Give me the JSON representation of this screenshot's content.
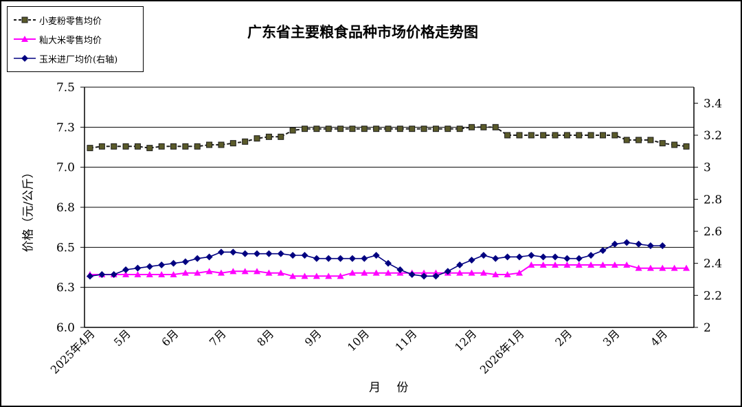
{
  "chart_data": {
    "type": "line",
    "title": "广东省主要粮食品种市场价格走势图",
    "xlabel": "月   份",
    "ylabel": "价格（元/公斤）",
    "grid": true,
    "legend_position": "top-left",
    "y_left": {
      "ylim": [
        6.0,
        7.5
      ],
      "ticks": [
        6.0,
        6.25,
        6.5,
        6.75,
        7.0,
        7.25,
        7.5
      ],
      "tick_labels": [
        "6.0",
        "6.3",
        "6.5",
        "6.8",
        "7.0",
        "7.3",
        "7.5"
      ]
    },
    "y_right": {
      "ylim": [
        2.0,
        3.5
      ],
      "ticks": [
        2.0,
        2.2,
        2.4,
        2.6,
        2.8,
        3.0,
        3.2,
        3.4
      ],
      "tick_labels": [
        "2",
        "2.2",
        "2.4",
        "2.6",
        "2.8",
        "3",
        "3.2",
        "3.4"
      ]
    },
    "x_labels": [
      {
        "i": 0,
        "label": "2025年4月"
      },
      {
        "i": 3,
        "label": "5月"
      },
      {
        "i": 7,
        "label": "6月"
      },
      {
        "i": 11,
        "label": "7月"
      },
      {
        "i": 15,
        "label": "8月"
      },
      {
        "i": 19,
        "label": "9月"
      },
      {
        "i": 23,
        "label": "10月"
      },
      {
        "i": 27,
        "label": "11月"
      },
      {
        "i": 32,
        "label": "12月"
      },
      {
        "i": 36,
        "label": "2026年1月"
      },
      {
        "i": 40,
        "label": "2月"
      },
      {
        "i": 44,
        "label": "3月"
      },
      {
        "i": 48,
        "label": "4月"
      }
    ],
    "series": [
      {
        "name": "小麦粉零售均价",
        "axis": "left",
        "color": "#1a1a1a",
        "marker": "square",
        "marker_fill": "#5a5a2a",
        "dashed": true,
        "values": [
          7.12,
          7.13,
          7.13,
          7.13,
          7.13,
          7.12,
          7.13,
          7.13,
          7.13,
          7.13,
          7.14,
          7.14,
          7.15,
          7.16,
          7.18,
          7.19,
          7.19,
          7.23,
          7.24,
          7.24,
          7.24,
          7.24,
          7.24,
          7.24,
          7.24,
          7.24,
          7.24,
          7.24,
          7.24,
          7.24,
          7.24,
          7.24,
          7.25,
          7.25,
          7.25,
          7.2,
          7.2,
          7.2,
          7.2,
          7.2,
          7.2,
          7.2,
          7.2,
          7.2,
          7.2,
          7.17,
          7.17,
          7.17,
          7.15,
          7.14,
          7.13
        ]
      },
      {
        "name": "籼大米零售均价",
        "axis": "left",
        "color": "#ff00ff",
        "marker": "triangle",
        "marker_fill": "#ff00ff",
        "dashed": false,
        "values": [
          6.33,
          6.33,
          6.33,
          6.33,
          6.33,
          6.33,
          6.33,
          6.33,
          6.34,
          6.34,
          6.35,
          6.34,
          6.35,
          6.35,
          6.35,
          6.34,
          6.34,
          6.32,
          6.32,
          6.32,
          6.32,
          6.32,
          6.34,
          6.34,
          6.34,
          6.34,
          6.34,
          6.34,
          6.34,
          6.34,
          6.34,
          6.34,
          6.34,
          6.34,
          6.33,
          6.33,
          6.34,
          6.39,
          6.39,
          6.39,
          6.39,
          6.39,
          6.39,
          6.39,
          6.39,
          6.39,
          6.37,
          6.37,
          6.37,
          6.37,
          6.37
        ]
      },
      {
        "name": "玉米进厂均价(右轴)",
        "axis": "right",
        "color": "#000080",
        "marker": "diamond",
        "marker_fill": "#000080",
        "dashed": false,
        "values": [
          2.32,
          2.33,
          2.33,
          2.36,
          2.37,
          2.38,
          2.39,
          2.4,
          2.41,
          2.43,
          2.44,
          2.47,
          2.47,
          2.46,
          2.46,
          2.46,
          2.46,
          2.45,
          2.45,
          2.43,
          2.43,
          2.43,
          2.43,
          2.43,
          2.45,
          2.4,
          2.36,
          2.33,
          2.32,
          2.32,
          2.35,
          2.39,
          2.42,
          2.45,
          2.43,
          2.44,
          2.44,
          2.45,
          2.44,
          2.44,
          2.43,
          2.43,
          2.45,
          2.48,
          2.52,
          2.53,
          2.52,
          2.51,
          2.51
        ]
      }
    ]
  }
}
